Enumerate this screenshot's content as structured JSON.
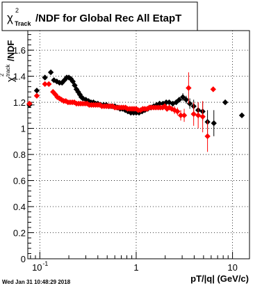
{
  "chart_data": {
    "type": "scatter",
    "title": {
      "chi": "χ",
      "sup": "2",
      "sub": "Track",
      "rest": "/NDF for Global Rec All EtapT"
    },
    "ylabel": {
      "chi": "χ",
      "sup": "2",
      "sub": "track",
      "rest": "/NDF"
    },
    "xlabel": "pT/|q| (GeV/c)",
    "timestamp": "Wed Jan 31 10:48:29 2018",
    "x_scale": "log",
    "xlim": [
      0.075,
      15
    ],
    "ylim": [
      0,
      1.75
    ],
    "grid": true,
    "y_ticks": [
      "0",
      "0.2",
      "0.4",
      "0.6",
      "0.8",
      "1",
      "1.2",
      "1.4",
      "1.6"
    ],
    "y_tick_values": [
      0,
      0.2,
      0.4,
      0.6,
      0.8,
      1.0,
      1.2,
      1.4,
      1.6
    ],
    "x_ticks": [
      {
        "value": 0.1,
        "base": "10",
        "exp": "-1"
      },
      {
        "value": 1,
        "text": "1"
      },
      {
        "value": 10,
        "text": "10"
      }
    ],
    "series": [
      {
        "color": "#000000",
        "marker": "diamond",
        "points": [
          [
            0.078,
            1.18,
            0.01,
            0.012
          ],
          [
            0.093,
            1.29,
            0.0,
            0.012
          ],
          [
            0.113,
            1.39,
            0.0,
            0.012
          ],
          [
            0.13,
            1.43,
            0.0,
            0.012
          ],
          [
            0.14,
            1.37,
            0.0,
            0.01
          ],
          [
            0.15,
            1.36,
            0.0,
            0.01
          ],
          [
            0.16,
            1.35,
            0.0,
            0.01
          ],
          [
            0.17,
            1.35,
            0.0,
            0.01
          ],
          [
            0.18,
            1.37,
            0.0,
            0.01
          ],
          [
            0.19,
            1.39,
            0.0,
            0.01
          ],
          [
            0.2,
            1.39,
            0.0,
            0.01
          ],
          [
            0.21,
            1.38,
            0.0,
            0.01
          ],
          [
            0.22,
            1.36,
            0.0,
            0.01
          ],
          [
            0.23,
            1.33,
            0.0,
            0.01
          ],
          [
            0.24,
            1.3,
            0.0,
            0.01
          ],
          [
            0.25,
            1.28,
            0.0,
            0.01
          ],
          [
            0.26,
            1.26,
            0.0,
            0.01
          ],
          [
            0.27,
            1.24,
            0.0,
            0.01
          ],
          [
            0.28,
            1.23,
            0.0,
            0.01
          ],
          [
            0.3,
            1.22,
            0.0,
            0.01
          ],
          [
            0.32,
            1.21,
            0.0,
            0.01
          ],
          [
            0.34,
            1.2,
            0.0,
            0.01
          ],
          [
            0.36,
            1.2,
            0.0,
            0.01
          ],
          [
            0.38,
            1.19,
            0.0,
            0.01
          ],
          [
            0.4,
            1.19,
            0.0,
            0.01
          ],
          [
            0.43,
            1.18,
            0.0,
            0.01
          ],
          [
            0.46,
            1.18,
            0.0,
            0.01
          ],
          [
            0.49,
            1.18,
            0.0,
            0.01
          ],
          [
            0.52,
            1.17,
            0.0,
            0.01
          ],
          [
            0.56,
            1.17,
            0.0,
            0.01
          ],
          [
            0.6,
            1.17,
            0.0,
            0.01
          ],
          [
            0.64,
            1.16,
            0.0,
            0.01
          ],
          [
            0.68,
            1.15,
            0.0,
            0.01
          ],
          [
            0.72,
            1.15,
            0.0,
            0.01
          ],
          [
            0.77,
            1.14,
            0.0,
            0.01
          ],
          [
            0.82,
            1.13,
            0.0,
            0.01
          ],
          [
            0.88,
            1.12,
            0.0,
            0.01
          ],
          [
            0.94,
            1.12,
            0.0,
            0.01
          ],
          [
            1.0,
            1.12,
            0.0,
            0.01
          ],
          [
            1.07,
            1.12,
            0.0,
            0.01
          ],
          [
            1.15,
            1.13,
            0.0,
            0.01
          ],
          [
            1.23,
            1.14,
            0.0,
            0.01
          ],
          [
            1.32,
            1.15,
            0.0,
            0.01
          ],
          [
            1.42,
            1.16,
            0.0,
            0.01
          ],
          [
            1.52,
            1.17,
            0.0,
            0.01
          ],
          [
            1.63,
            1.18,
            0.0,
            0.01
          ],
          [
            1.75,
            1.19,
            0.0,
            0.015
          ],
          [
            1.9,
            1.19,
            0.0,
            0.015
          ],
          [
            2.05,
            1.2,
            0.0,
            0.015
          ],
          [
            2.2,
            1.2,
            0.0,
            0.015
          ],
          [
            2.4,
            1.19,
            0.0,
            0.02
          ],
          [
            2.6,
            1.2,
            0.0,
            0.02
          ],
          [
            2.8,
            1.22,
            0.0,
            0.02
          ],
          [
            3.05,
            1.24,
            0.0,
            0.03
          ],
          [
            3.3,
            1.22,
            0.0,
            0.03
          ],
          [
            3.6,
            1.19,
            0.0,
            0.04
          ],
          [
            3.95,
            1.17,
            0.0,
            0.05
          ],
          [
            4.4,
            1.14,
            0.0,
            0.06
          ],
          [
            4.9,
            1.13,
            0.0,
            0.07
          ],
          [
            5.5,
            1.05,
            0.0,
            0.09
          ],
          [
            6.4,
            1.04,
            0.0,
            0.1
          ],
          [
            8.4,
            1.2,
            0.4,
            0.02
          ],
          [
            12.5,
            1.1,
            0.5,
            0.01
          ]
        ]
      },
      {
        "color": "#ff0000",
        "marker": "diamond",
        "points": [
          [
            0.078,
            1.19,
            0.0,
            0.015
          ],
          [
            0.093,
            1.25,
            0.0,
            0.015
          ],
          [
            0.113,
            1.34,
            0.0,
            0.015
          ],
          [
            0.124,
            1.34,
            0.0,
            0.015
          ],
          [
            0.137,
            1.28,
            0.0,
            0.012
          ],
          [
            0.145,
            1.26,
            0.0,
            0.012
          ],
          [
            0.152,
            1.24,
            0.0,
            0.01
          ],
          [
            0.16,
            1.23,
            0.0,
            0.01
          ],
          [
            0.168,
            1.22,
            0.0,
            0.01
          ],
          [
            0.177,
            1.21,
            0.0,
            0.01
          ],
          [
            0.186,
            1.21,
            0.0,
            0.01
          ],
          [
            0.196,
            1.2,
            0.0,
            0.01
          ],
          [
            0.206,
            1.2,
            0.0,
            0.01
          ],
          [
            0.217,
            1.2,
            0.0,
            0.01
          ],
          [
            0.228,
            1.2,
            0.0,
            0.01
          ],
          [
            0.24,
            1.19,
            0.0,
            0.01
          ],
          [
            0.253,
            1.19,
            0.0,
            0.01
          ],
          [
            0.266,
            1.19,
            0.0,
            0.01
          ],
          [
            0.28,
            1.19,
            0.0,
            0.01
          ],
          [
            0.295,
            1.19,
            0.0,
            0.01
          ],
          [
            0.31,
            1.19,
            0.0,
            0.01
          ],
          [
            0.326,
            1.18,
            0.0,
            0.01
          ],
          [
            0.343,
            1.18,
            0.0,
            0.01
          ],
          [
            0.361,
            1.18,
            0.0,
            0.01
          ],
          [
            0.38,
            1.18,
            0.0,
            0.01
          ],
          [
            0.4,
            1.18,
            0.0,
            0.01
          ],
          [
            0.42,
            1.18,
            0.0,
            0.01
          ],
          [
            0.44,
            1.17,
            0.0,
            0.01
          ],
          [
            0.465,
            1.17,
            0.0,
            0.01
          ],
          [
            0.49,
            1.17,
            0.0,
            0.01
          ],
          [
            0.515,
            1.17,
            0.0,
            0.01
          ],
          [
            0.54,
            1.17,
            0.0,
            0.01
          ],
          [
            0.57,
            1.17,
            0.0,
            0.01
          ],
          [
            0.6,
            1.16,
            0.0,
            0.01
          ],
          [
            0.63,
            1.16,
            0.0,
            0.01
          ],
          [
            0.665,
            1.16,
            0.0,
            0.01
          ],
          [
            0.7,
            1.16,
            0.0,
            0.01
          ],
          [
            0.735,
            1.16,
            0.0,
            0.01
          ],
          [
            0.775,
            1.16,
            0.0,
            0.01
          ],
          [
            0.815,
            1.15,
            0.0,
            0.01
          ],
          [
            0.86,
            1.15,
            0.0,
            0.01
          ],
          [
            0.905,
            1.15,
            0.0,
            0.01
          ],
          [
            0.95,
            1.15,
            0.0,
            0.01
          ],
          [
            1.0,
            1.15,
            0.0,
            0.01
          ],
          [
            1.05,
            1.14,
            0.0,
            0.01
          ],
          [
            1.11,
            1.14,
            0.0,
            0.01
          ],
          [
            1.17,
            1.15,
            0.0,
            0.01
          ],
          [
            1.23,
            1.15,
            0.0,
            0.01
          ],
          [
            1.3,
            1.15,
            0.0,
            0.01
          ],
          [
            1.37,
            1.16,
            0.0,
            0.01
          ],
          [
            1.44,
            1.16,
            0.0,
            0.01
          ],
          [
            1.52,
            1.16,
            0.0,
            0.01
          ],
          [
            1.6,
            1.16,
            0.0,
            0.01
          ],
          [
            1.69,
            1.16,
            0.0,
            0.01
          ],
          [
            1.78,
            1.16,
            0.0,
            0.015
          ],
          [
            1.88,
            1.16,
            0.0,
            0.015
          ],
          [
            1.98,
            1.17,
            0.0,
            0.015
          ],
          [
            2.09,
            1.15,
            0.0,
            0.02
          ],
          [
            2.21,
            1.16,
            0.0,
            0.02
          ],
          [
            2.34,
            1.15,
            0.0,
            0.02
          ],
          [
            2.5,
            1.14,
            0.0,
            0.03
          ],
          [
            2.68,
            1.13,
            0.0,
            0.03
          ],
          [
            2.9,
            1.1,
            0.0,
            0.04
          ],
          [
            3.15,
            1.1,
            0.0,
            0.05
          ],
          [
            3.5,
            1.31,
            0.0,
            0.12
          ],
          [
            3.95,
            1.11,
            0.0,
            0.09
          ],
          [
            4.4,
            1.1,
            0.0,
            0.1
          ],
          [
            4.9,
            1.09,
            0.0,
            0.12
          ],
          [
            5.5,
            0.94,
            0.0,
            0.12
          ],
          [
            6.3,
            1.3,
            0.0,
            0.02
          ]
        ]
      }
    ]
  }
}
